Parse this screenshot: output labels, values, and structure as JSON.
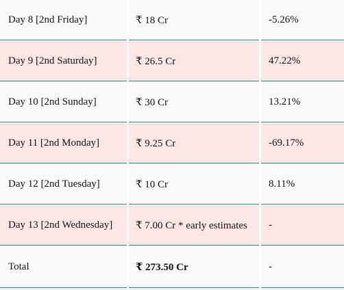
{
  "rows": [
    {
      "day": "Day 8 [2nd Friday]",
      "collection": "₹ 18 Cr",
      "change": "-5.26%"
    },
    {
      "day": "Day 9 [2nd Saturday]",
      "collection": "₹ 26.5 Cr",
      "change": "47.22%"
    },
    {
      "day": "Day 10 [2nd Sunday]",
      "collection": "₹ 30 Cr",
      "change": "13.21%"
    },
    {
      "day": "Day 11 [2nd Monday]",
      "collection": "₹ 9.25 Cr",
      "change": "-69.17%"
    },
    {
      "day": "Day 12 [2nd Tuesday]",
      "collection": "₹ 10 Cr",
      "change": "8.11%"
    },
    {
      "day": "Day 13 [2nd Wednesday]",
      "collection": "₹ 7.00 Cr * early estimates",
      "change": "-"
    },
    {
      "day": "Total",
      "collection": "₹ 273.50 Cr",
      "change": "-"
    }
  ],
  "colors": {
    "row_odd": "#f9f9f9",
    "row_even": "#fde6e6",
    "row_border": "#2f8f7f"
  }
}
